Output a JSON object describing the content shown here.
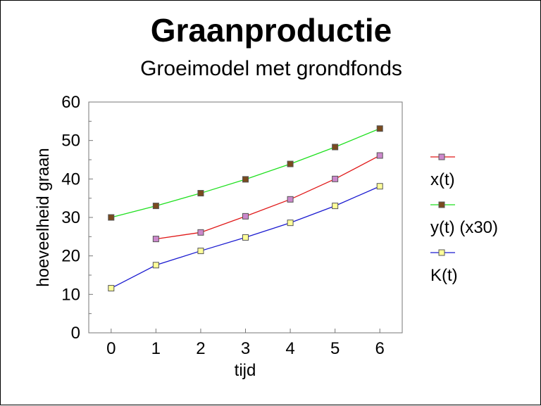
{
  "chart_data": {
    "type": "line",
    "title": "Graanproductie",
    "subtitle": "Groeimodel met grondfonds",
    "xlabel": "tijd",
    "ylabel": "hoeveelheid graan",
    "xlim": [
      -0.5,
      6.5
    ],
    "ylim": [
      0,
      60
    ],
    "x_ticks": [
      0,
      1,
      2,
      3,
      4,
      5,
      6
    ],
    "y_ticks": [
      0,
      10,
      20,
      30,
      40,
      50,
      60
    ],
    "grid": false,
    "legend_position": "right",
    "series": [
      {
        "name": "x(t)",
        "line_color": "#e01818",
        "marker_color": "#cc88cc",
        "x": [
          1,
          2,
          3,
          4,
          5,
          6
        ],
        "y": [
          24.4,
          26.1,
          30.3,
          34.7,
          40.0,
          46.1
        ]
      },
      {
        "name": "y(t) (x30)",
        "line_color": "#1fe01f",
        "marker_color": "#7a4a1e",
        "x": [
          0,
          1,
          2,
          3,
          4,
          5,
          6
        ],
        "y": [
          30.0,
          33.0,
          36.3,
          39.9,
          43.9,
          48.3,
          53.1
        ]
      },
      {
        "name": "K(t)",
        "line_color": "#1a1ad0",
        "marker_color": "#ffff99",
        "x": [
          0,
          1,
          2,
          3,
          4,
          5,
          6
        ],
        "y": [
          11.6,
          17.6,
          21.3,
          24.8,
          28.6,
          33.0,
          38.1
        ]
      }
    ]
  }
}
